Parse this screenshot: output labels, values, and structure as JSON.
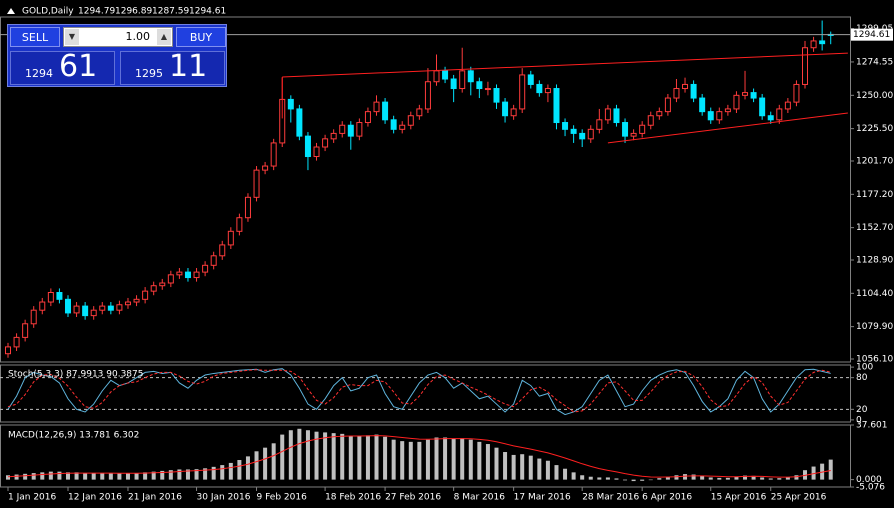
{
  "header": {
    "symbol": "GOLD,Daily"
  },
  "trade": {
    "sell": "SELL",
    "buy": "BUY",
    "lots": "1.00",
    "bid_big": "1294",
    "bid_small": "61",
    "ask_big": "1295",
    "ask_small": "11"
  },
  "chart_data": {
    "type": "candlestick",
    "categories": [
      "1 Jan 2016",
      null,
      null,
      null,
      null,
      null,
      null,
      "12 Jan 2016",
      null,
      null,
      null,
      null,
      null,
      null,
      "21 Jan 2016",
      null,
      null,
      null,
      null,
      null,
      null,
      null,
      "30 Jan 2016",
      null,
      null,
      null,
      null,
      null,
      null,
      "9 Feb 2016",
      null,
      null,
      null,
      null,
      null,
      null,
      null,
      "18 Feb 2016",
      null,
      null,
      null,
      null,
      null,
      null,
      "27 Feb 2016",
      null,
      null,
      null,
      null,
      null,
      null,
      null,
      "8 Mar 2016",
      null,
      null,
      null,
      null,
      null,
      null,
      "17 Mar 2016",
      null,
      null,
      null,
      null,
      null,
      null,
      null,
      "28 Mar 2016",
      null,
      null,
      null,
      null,
      null,
      null,
      "6 Apr 2016",
      null,
      null,
      null,
      null,
      null,
      null,
      null,
      "15 Apr 2016",
      null,
      null,
      null,
      null,
      null,
      null,
      "25 Apr 2016",
      null,
      null,
      null,
      null,
      null,
      null,
      null
    ],
    "candles": [
      [
        1060,
        1068,
        1057,
        1065
      ],
      [
        1065,
        1075,
        1062,
        1072
      ],
      [
        1072,
        1085,
        1069,
        1082
      ],
      [
        1082,
        1095,
        1079,
        1092
      ],
      [
        1092,
        1101,
        1089,
        1098
      ],
      [
        1098,
        1108,
        1095,
        1105
      ],
      [
        1105,
        1108,
        1097,
        1100
      ],
      [
        1100,
        1103,
        1087,
        1090
      ],
      [
        1090,
        1098,
        1087,
        1095
      ],
      [
        1095,
        1098,
        1085,
        1088
      ],
      [
        1088,
        1095,
        1085,
        1092
      ],
      [
        1092,
        1098,
        1089,
        1095
      ],
      [
        1095,
        1098,
        1089,
        1092
      ],
      [
        1092,
        1099,
        1089,
        1096
      ],
      [
        1096,
        1101,
        1093,
        1098
      ],
      [
        1098,
        1103,
        1095,
        1100
      ],
      [
        1100,
        1109,
        1097,
        1106
      ],
      [
        1106,
        1113,
        1103,
        1110
      ],
      [
        1110,
        1115,
        1107,
        1112
      ],
      [
        1112,
        1121,
        1109,
        1118
      ],
      [
        1118,
        1123,
        1115,
        1120
      ],
      [
        1120,
        1123,
        1113,
        1116
      ],
      [
        1116,
        1123,
        1113,
        1120
      ],
      [
        1120,
        1128,
        1117,
        1125
      ],
      [
        1125,
        1135,
        1122,
        1132
      ],
      [
        1132,
        1143,
        1129,
        1140
      ],
      [
        1140,
        1153,
        1137,
        1150
      ],
      [
        1150,
        1163,
        1147,
        1160
      ],
      [
        1160,
        1178,
        1157,
        1175
      ],
      [
        1175,
        1198,
        1172,
        1195
      ],
      [
        1195,
        1201,
        1192,
        1198
      ],
      [
        1198,
        1218,
        1195,
        1215
      ],
      [
        1215,
        1263,
        1212,
        1247
      ],
      [
        1247,
        1250,
        1230,
        1240
      ],
      [
        1240,
        1243,
        1217,
        1220
      ],
      [
        1220,
        1223,
        1195,
        1205
      ],
      [
        1205,
        1215,
        1202,
        1212
      ],
      [
        1212,
        1221,
        1209,
        1218
      ],
      [
        1218,
        1225,
        1215,
        1222
      ],
      [
        1222,
        1231,
        1219,
        1228
      ],
      [
        1228,
        1231,
        1210,
        1220
      ],
      [
        1220,
        1233,
        1217,
        1230
      ],
      [
        1230,
        1241,
        1227,
        1238
      ],
      [
        1238,
        1250,
        1235,
        1245
      ],
      [
        1245,
        1248,
        1229,
        1232
      ],
      [
        1232,
        1235,
        1222,
        1225
      ],
      [
        1225,
        1231,
        1222,
        1228
      ],
      [
        1228,
        1238,
        1225,
        1235
      ],
      [
        1235,
        1243,
        1232,
        1240
      ],
      [
        1240,
        1270,
        1237,
        1260
      ],
      [
        1260,
        1280,
        1257,
        1268
      ],
      [
        1268,
        1271,
        1259,
        1262
      ],
      [
        1262,
        1265,
        1245,
        1255
      ],
      [
        1255,
        1285,
        1252,
        1268
      ],
      [
        1268,
        1271,
        1250,
        1260
      ],
      [
        1260,
        1263,
        1248,
        1255
      ],
      [
        1255,
        1260,
        1250,
        1255
      ],
      [
        1255,
        1258,
        1240,
        1245
      ],
      [
        1245,
        1248,
        1230,
        1235
      ],
      [
        1235,
        1243,
        1232,
        1240
      ],
      [
        1240,
        1270,
        1237,
        1265
      ],
      [
        1265,
        1268,
        1255,
        1258
      ],
      [
        1258,
        1261,
        1249,
        1252
      ],
      [
        1252,
        1258,
        1245,
        1255
      ],
      [
        1255,
        1258,
        1225,
        1230
      ],
      [
        1230,
        1233,
        1220,
        1225
      ],
      [
        1225,
        1228,
        1215,
        1222
      ],
      [
        1222,
        1225,
        1212,
        1218
      ],
      [
        1218,
        1228,
        1215,
        1225
      ],
      [
        1225,
        1240,
        1222,
        1232
      ],
      [
        1232,
        1243,
        1229,
        1240
      ],
      [
        1240,
        1243,
        1227,
        1230
      ],
      [
        1230,
        1233,
        1215,
        1220
      ],
      [
        1220,
        1225,
        1217,
        1222
      ],
      [
        1222,
        1231,
        1219,
        1228
      ],
      [
        1228,
        1238,
        1225,
        1235
      ],
      [
        1235,
        1241,
        1232,
        1238
      ],
      [
        1238,
        1251,
        1235,
        1248
      ],
      [
        1248,
        1262,
        1245,
        1255
      ],
      [
        1255,
        1263,
        1252,
        1258
      ],
      [
        1258,
        1261,
        1245,
        1248
      ],
      [
        1248,
        1251,
        1235,
        1238
      ],
      [
        1238,
        1241,
        1229,
        1232
      ],
      [
        1232,
        1241,
        1229,
        1238
      ],
      [
        1238,
        1243,
        1235,
        1240
      ],
      [
        1240,
        1253,
        1237,
        1250
      ],
      [
        1250,
        1268,
        1247,
        1252
      ],
      [
        1252,
        1255,
        1245,
        1248
      ],
      [
        1248,
        1251,
        1232,
        1235
      ],
      [
        1235,
        1238,
        1229,
        1232
      ],
      [
        1232,
        1243,
        1229,
        1240
      ],
      [
        1240,
        1248,
        1237,
        1245
      ],
      [
        1245,
        1261,
        1242,
        1258
      ],
      [
        1258,
        1290,
        1255,
        1285
      ],
      [
        1285,
        1293,
        1282,
        1290
      ],
      [
        1290,
        1305,
        1283,
        1288
      ],
      [
        1294.79,
        1296.89,
        1287.59,
        1294.61
      ]
    ],
    "bull_color": "#ff3c3c",
    "bear_color": "#00e5ff",
    "ylim": [
      1053.9,
      1307.6
    ],
    "yticks": [
      1299.05,
      1274.55,
      {
        "value": 1250.0,
        "label": "1250.00"
      },
      {
        "value": 1225.5,
        "label": "1225.50"
      },
      {
        "value": 1201.7,
        "label": "1201.70"
      },
      {
        "value": 1177.2,
        "label": "1177.20"
      },
      {
        "value": 1152.7,
        "label": "1152.70"
      },
      {
        "value": 1128.9,
        "label": "1128.90"
      },
      {
        "value": 1104.4,
        "label": "1104.40"
      },
      {
        "value": 1079.9,
        "label": "1079.90"
      },
      {
        "value": 1056.1,
        "label": "1056.10"
      }
    ],
    "trendlines": [
      {
        "color": "#ff2020",
        "points": [
          [
            32,
            1263.5
          ],
          [
            98,
            1281
          ]
        ]
      },
      {
        "color": "#ff2020",
        "points": [
          [
            32,
            1263.5
          ],
          [
            32,
            1233
          ]
        ]
      },
      {
        "color": "#ff2020",
        "points": [
          [
            70,
            1215
          ],
          [
            98,
            1237
          ]
        ]
      }
    ],
    "stochastic": {
      "label": "Stoch(5,3,3) 87.9913 90.3875",
      "ylim": [
        -4,
        104
      ],
      "yticks": [
        100,
        80,
        20,
        0
      ],
      "levels": [
        80,
        20
      ],
      "main": {
        "color": "#5fb4dc",
        "values": [
          20,
          45,
          80,
          90,
          85,
          82,
          70,
          40,
          20,
          15,
          30,
          55,
          75,
          65,
          70,
          80,
          90,
          92,
          88,
          90,
          70,
          60,
          75,
          85,
          88,
          90,
          92,
          94,
          95,
          96,
          90,
          95,
          97,
          85,
          60,
          30,
          20,
          40,
          65,
          80,
          55,
          60,
          80,
          85,
          50,
          25,
          20,
          45,
          70,
          85,
          90,
          80,
          60,
          70,
          55,
          40,
          45,
          30,
          15,
          30,
          75,
          65,
          45,
          50,
          20,
          10,
          15,
          25,
          50,
          75,
          85,
          55,
          25,
          30,
          55,
          75,
          85,
          92,
          95,
          90,
          65,
          35,
          15,
          25,
          40,
          75,
          92,
          80,
          40,
          15,
          30,
          55,
          80,
          95,
          96,
          92,
          87.9913
        ]
      },
      "signal": {
        "color": "#ff3030",
        "values": [
          25,
          30,
          48,
          72,
          85,
          86,
          79,
          64,
          43,
          25,
          22,
          33,
          53,
          65,
          70,
          72,
          80,
          87,
          90,
          90,
          83,
          73,
          68,
          73,
          83,
          88,
          90,
          92,
          94,
          95,
          94,
          94,
          94,
          92,
          81,
          58,
          37,
          30,
          42,
          62,
          67,
          65,
          65,
          75,
          72,
          53,
          32,
          30,
          45,
          67,
          82,
          85,
          77,
          70,
          62,
          55,
          47,
          38,
          30,
          25,
          40,
          57,
          62,
          53,
          38,
          27,
          15,
          17,
          30,
          50,
          70,
          72,
          55,
          37,
          37,
          53,
          72,
          84,
          91,
          92,
          83,
          63,
          38,
          25,
          27,
          47,
          69,
          82,
          71,
          45,
          28,
          33,
          55,
          77,
          90,
          94,
          90.3875
        ]
      }
    },
    "macd": {
      "label": "MACD(12,26,9) 13.781 6.302",
      "ylim": [
        -5.076,
        37.601
      ],
      "yticks": [
        37.601,
        {
          "value": 0,
          "label": "0.000"
        },
        -5.076
      ],
      "histogram": {
        "color": "#c0c0c0",
        "values": [
          3,
          3.5,
          4,
          4.5,
          5,
          5.5,
          5.5,
          5,
          5,
          4.5,
          4.5,
          4.5,
          4.2,
          4.2,
          4.3,
          4.5,
          5,
          5.5,
          6,
          6.5,
          7,
          7,
          7.2,
          7.8,
          8.8,
          10,
          11.5,
          13.5,
          16,
          19.5,
          22,
          25,
          31,
          34,
          35,
          34,
          33,
          32.5,
          32,
          31.5,
          30,
          30,
          30.5,
          31,
          29.5,
          27.5,
          26.5,
          26,
          26,
          27.5,
          29,
          29,
          28,
          28.5,
          27.5,
          26,
          24.5,
          22,
          19,
          17,
          17.5,
          16.5,
          14.5,
          13,
          10,
          7.5,
          5,
          3,
          2,
          1.5,
          1.5,
          0.8,
          -0.5,
          -1,
          -0.8,
          0,
          1,
          2,
          3,
          3.8,
          3.5,
          2.5,
          1.5,
          1.2,
          1.2,
          2,
          2.8,
          2.6,
          1.5,
          0.8,
          1,
          1.5,
          3,
          6.5,
          9,
          11,
          13.781
        ]
      },
      "signal": {
        "color": "#ff2020",
        "values": [
          2,
          2.3,
          2.7,
          3.1,
          3.5,
          3.9,
          4.2,
          4.4,
          4.5,
          4.5,
          4.5,
          4.5,
          4.5,
          4.4,
          4.4,
          4.4,
          4.5,
          4.7,
          4.9,
          5.2,
          5.6,
          5.9,
          6.2,
          6.5,
          6.9,
          7.5,
          8.3,
          9.3,
          10.6,
          12.4,
          14.3,
          16.5,
          19.4,
          22.3,
          24.8,
          26.6,
          27.9,
          28.8,
          29.5,
          29.9,
          30,
          30,
          30.1,
          30.3,
          30.1,
          29.6,
          29,
          28.4,
          27.9,
          27.8,
          28,
          28.2,
          28.2,
          28.2,
          28.1,
          27.7,
          27.1,
          26.1,
          24.7,
          23.2,
          22.1,
          21,
          19.7,
          18.4,
          16.7,
          14.9,
          12.9,
          10.9,
          9.1,
          7.6,
          6.4,
          5.3,
          4.1,
          3.1,
          2.3,
          1.8,
          1.7,
          1.8,
          2,
          2.4,
          2.6,
          2.6,
          2.4,
          2.2,
          2,
          2,
          2.2,
          2.3,
          2.2,
          1.9,
          1.7,
          1.7,
          2,
          2.9,
          4.1,
          5.2,
          6.302
        ]
      }
    }
  }
}
